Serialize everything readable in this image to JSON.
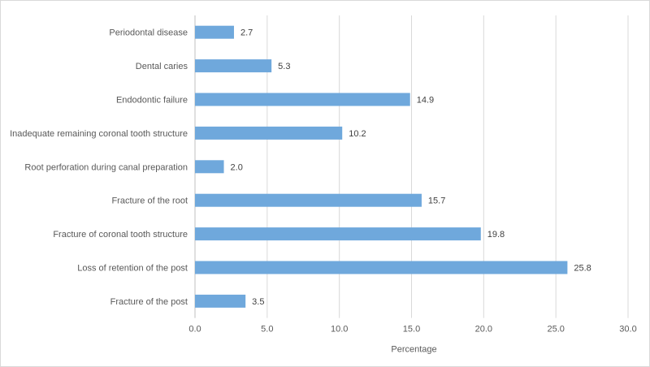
{
  "chart_data": {
    "type": "bar",
    "orientation": "horizontal",
    "categories": [
      "Periodontal disease",
      "Dental caries",
      "Endodontic failure",
      "Inadequate remaining coronal tooth structure",
      "Root perforation during canal preparation",
      "Fracture of the root",
      "Fracture of coronal tooth structure",
      "Loss of retention of the post",
      "Fracture of the post"
    ],
    "values": [
      2.7,
      5.3,
      14.9,
      10.2,
      2.0,
      15.7,
      19.8,
      25.8,
      3.5
    ],
    "value_labels": [
      "2.7",
      "5.3",
      "14.9",
      "10.2",
      "2.0",
      "15.7",
      "19.8",
      "25.8",
      "3.5"
    ],
    "xlabel": "Percentage",
    "ylabel": "",
    "xlim": [
      0,
      30
    ],
    "ticks": [
      0,
      5,
      10,
      15,
      20,
      25,
      30
    ],
    "tick_labels": [
      "0.0",
      "5.0",
      "10.0",
      "15.0",
      "20.0",
      "25.0",
      "30.0"
    ],
    "grid": true,
    "legend": "none",
    "colors": {
      "bar": "#6fa8dc",
      "grid": "#d9d9d9",
      "axis": "#bfbfbf"
    }
  }
}
